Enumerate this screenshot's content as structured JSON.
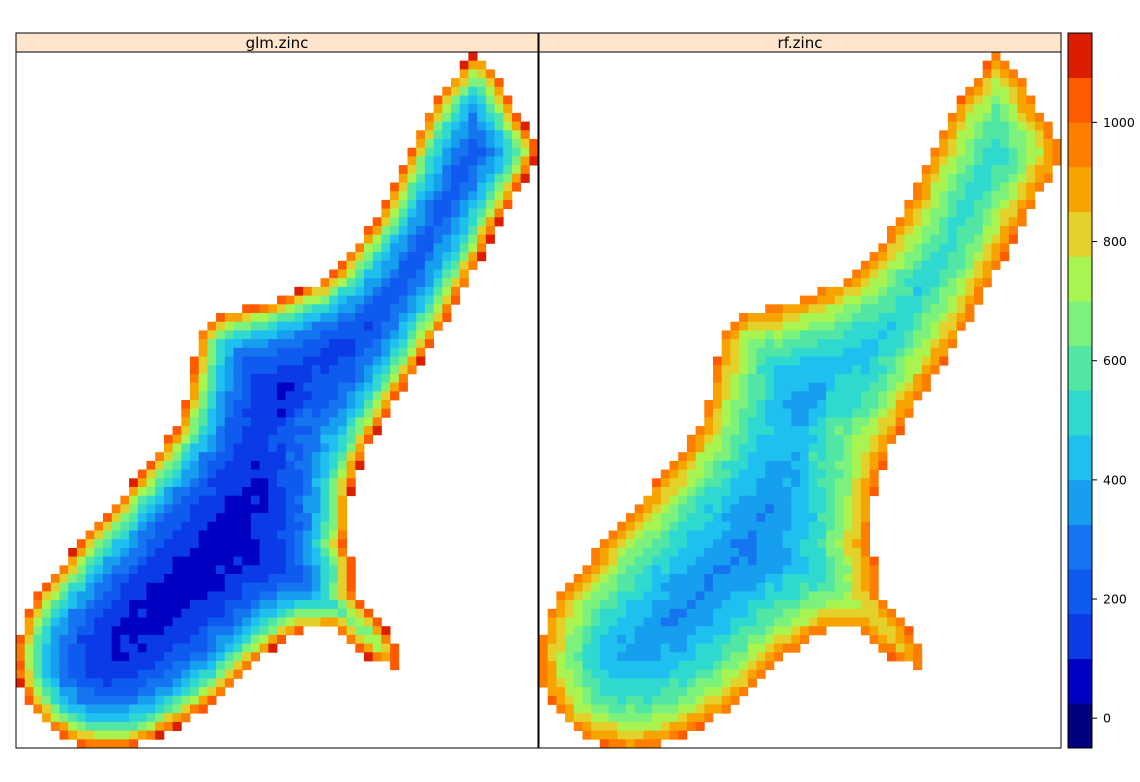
{
  "chart_data": {
    "type": "heatmap",
    "title": "",
    "panels": [
      {
        "name": "glm.zinc",
        "pattern": {
          "center_value": 30,
          "edge_value": 1100,
          "falloff": 3.2,
          "noise": 22
        }
      },
      {
        "name": "rf.zinc",
        "pattern": {
          "center_value": 185,
          "edge_value": 1000,
          "falloff": 6.0,
          "noise": 25
        }
      }
    ],
    "colorkey": {
      "breaks": [
        -50,
        25,
        100,
        175,
        250,
        325,
        400,
        475,
        550,
        625,
        700,
        775,
        850,
        925,
        1000,
        1075,
        1150
      ],
      "colors": [
        "#00007F",
        "#0000C3",
        "#0A3BE6",
        "#0F5BF0",
        "#1575F0",
        "#169FEE",
        "#1FC0F0",
        "#30D9D0",
        "#52E6A4",
        "#7CF27C",
        "#A8F552",
        "#E3D02A",
        "#F7A400",
        "#FD7E00",
        "#FF5A00",
        "#DC1E00",
        "#A70000"
      ],
      "ticks": [
        0,
        200,
        400,
        600,
        800,
        1000
      ],
      "tick_labels": [
        "0",
        "200",
        "400",
        "600",
        "800",
        "1000"
      ]
    }
  }
}
